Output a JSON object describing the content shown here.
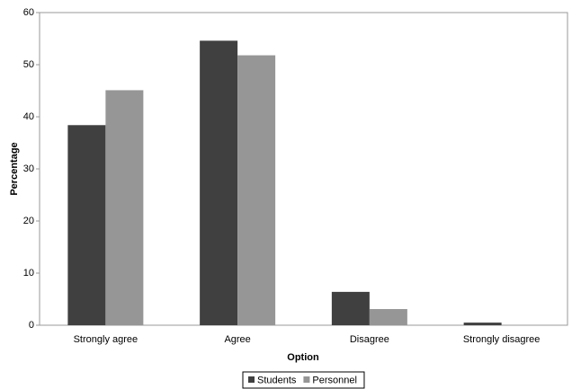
{
  "chart_data": {
    "type": "bar",
    "x_label": "Option",
    "y_label": "Percentage",
    "categories": [
      "Strongly agree",
      "Agree",
      "Disagree",
      "Strongly disagree"
    ],
    "series": [
      {
        "name": "Students",
        "color": "#404040",
        "values": [
          38.4,
          54.6,
          6.4,
          0.5
        ]
      },
      {
        "name": "Personnel",
        "color": "#969696",
        "values": [
          45.1,
          51.8,
          3.1,
          0
        ]
      }
    ],
    "ylim": [
      0,
      60
    ],
    "yticks": [
      0,
      10,
      20,
      30,
      40,
      50,
      60
    ],
    "legend": "bottom"
  }
}
